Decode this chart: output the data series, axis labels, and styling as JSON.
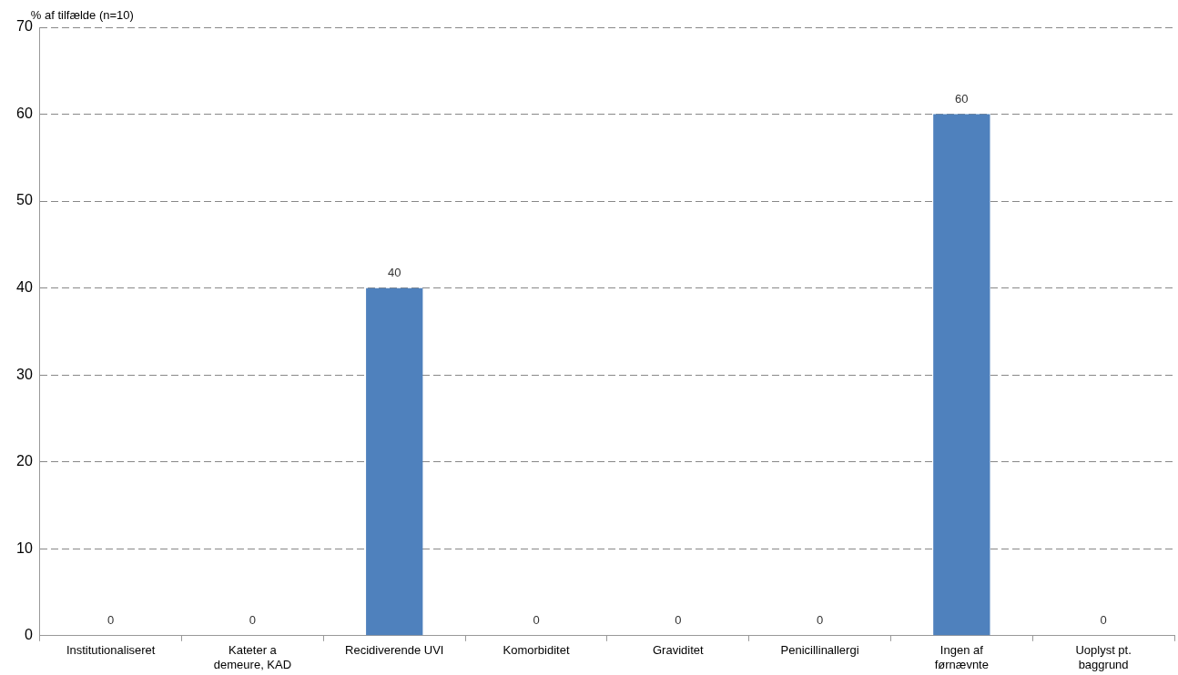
{
  "chart_data": {
    "type": "bar",
    "ylabel": "% af tilfælde (n=10)",
    "categories": [
      "Institutionaliseret",
      "Kateter a demeure, KAD",
      "Recidiverende UVI",
      "Komorbiditet",
      "Graviditet",
      "Penicillinallergi",
      "Ingen af førnævnte",
      "Uoplyst pt. baggrund"
    ],
    "values": [
      0,
      0,
      40,
      0,
      0,
      0,
      60,
      0
    ],
    "color": "#4f81bd",
    "ylim": [
      0,
      70
    ],
    "yticks": [
      0,
      10,
      20,
      30,
      40,
      50,
      60,
      70
    ],
    "grid": "y",
    "data_labels": true,
    "legend": false
  }
}
